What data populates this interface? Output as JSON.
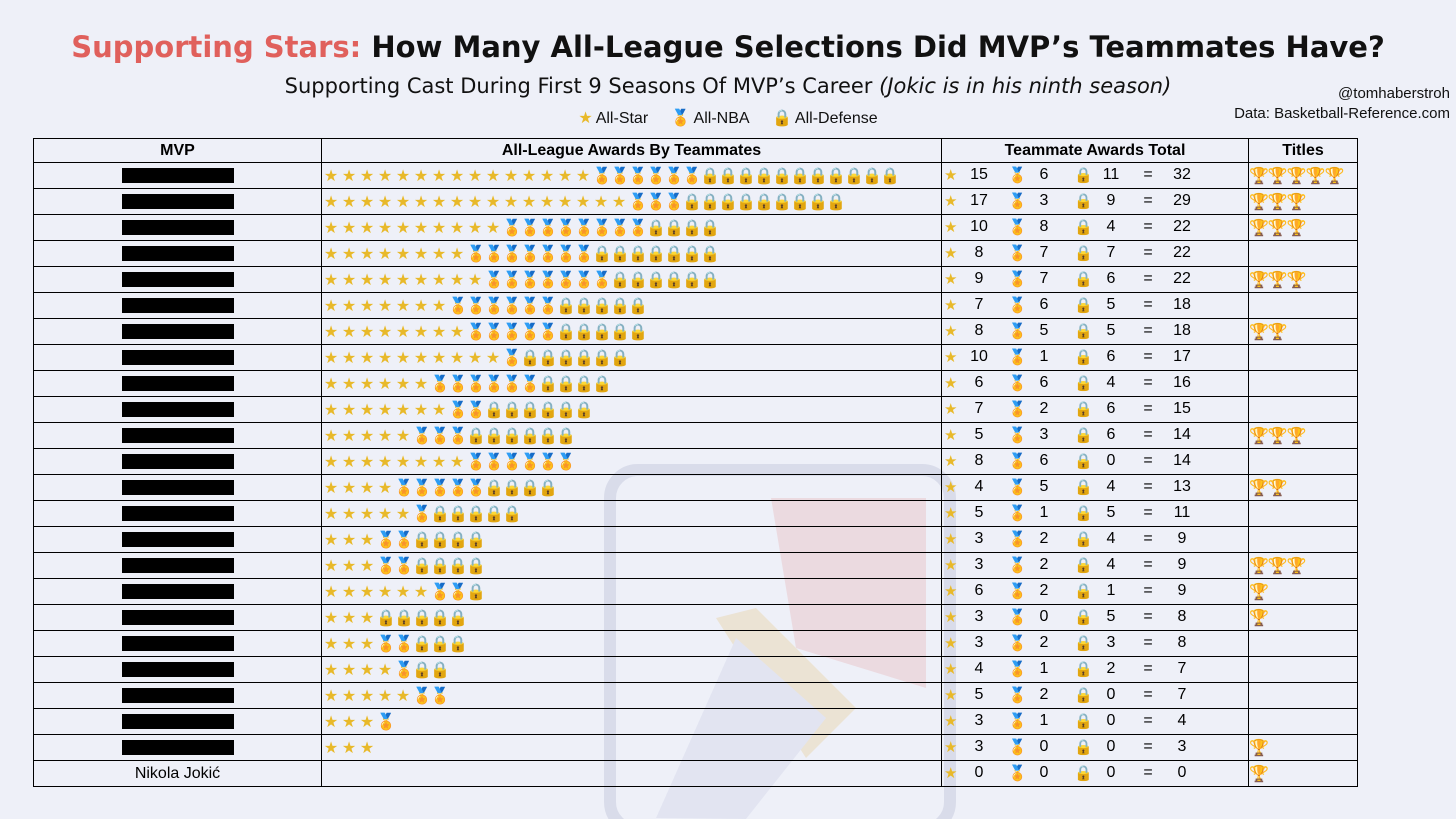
{
  "header": {
    "title_highlight": "Supporting Stars:",
    "title_rest": "How Many All-League Selections Did MVP’s Teammates Have?",
    "subtitle_main": "Supporting Cast During First 9 Seasons Of MVP’s Career",
    "subtitle_note": "(Jokic is in his ninth season)",
    "credit_handle": "@tomhaberstroh",
    "credit_source": "Data: Basketball-Reference.com"
  },
  "legend": [
    {
      "icon": "star-icon",
      "label": "All-Star"
    },
    {
      "icon": "medal-icon",
      "label": "All-NBA"
    },
    {
      "icon": "lock-icon",
      "label": "All-Defense"
    }
  ],
  "glyphs": {
    "star": "★",
    "medal": "🏅",
    "lock": "🔒",
    "trophy": "🏆",
    "eq": "="
  },
  "colors": {
    "title_accent": "#e0605c",
    "background": "#eef0f8",
    "star": "#e8b92a",
    "medal": "#c89a22",
    "lock": "#8a8370",
    "trophy": "#b8860b"
  },
  "table": {
    "columns": [
      "MVP",
      "All-League Awards By Teammates",
      "Teammate Awards Total",
      "Titles"
    ]
  },
  "chart_data": {
    "type": "table",
    "rows": [
      {
        "mvp": "",
        "all_star": 15,
        "all_nba": 6,
        "all_defense": 11,
        "total": 32,
        "titles": 5
      },
      {
        "mvp": "",
        "all_star": 17,
        "all_nba": 3,
        "all_defense": 9,
        "total": 29,
        "titles": 3
      },
      {
        "mvp": "",
        "all_star": 10,
        "all_nba": 8,
        "all_defense": 4,
        "total": 22,
        "titles": 3
      },
      {
        "mvp": "",
        "all_star": 8,
        "all_nba": 7,
        "all_defense": 7,
        "total": 22,
        "titles": 0
      },
      {
        "mvp": "",
        "all_star": 9,
        "all_nba": 7,
        "all_defense": 6,
        "total": 22,
        "titles": 3
      },
      {
        "mvp": "",
        "all_star": 7,
        "all_nba": 6,
        "all_defense": 5,
        "total": 18,
        "titles": 0
      },
      {
        "mvp": "",
        "all_star": 8,
        "all_nba": 5,
        "all_defense": 5,
        "total": 18,
        "titles": 2
      },
      {
        "mvp": "",
        "all_star": 10,
        "all_nba": 1,
        "all_defense": 6,
        "total": 17,
        "titles": 0
      },
      {
        "mvp": "",
        "all_star": 6,
        "all_nba": 6,
        "all_defense": 4,
        "total": 16,
        "titles": 0
      },
      {
        "mvp": "",
        "all_star": 7,
        "all_nba": 2,
        "all_defense": 6,
        "total": 15,
        "titles": 0
      },
      {
        "mvp": "",
        "all_star": 5,
        "all_nba": 3,
        "all_defense": 6,
        "total": 14,
        "titles": 3
      },
      {
        "mvp": "",
        "all_star": 8,
        "all_nba": 6,
        "all_defense": 0,
        "total": 14,
        "titles": 0
      },
      {
        "mvp": "",
        "all_star": 4,
        "all_nba": 5,
        "all_defense": 4,
        "total": 13,
        "titles": 2
      },
      {
        "mvp": "",
        "all_star": 5,
        "all_nba": 1,
        "all_defense": 5,
        "total": 11,
        "titles": 0
      },
      {
        "mvp": "",
        "all_star": 3,
        "all_nba": 2,
        "all_defense": 4,
        "total": 9,
        "titles": 0
      },
      {
        "mvp": "",
        "all_star": 3,
        "all_nba": 2,
        "all_defense": 4,
        "total": 9,
        "titles": 3
      },
      {
        "mvp": "",
        "all_star": 6,
        "all_nba": 2,
        "all_defense": 1,
        "total": 9,
        "titles": 1
      },
      {
        "mvp": "",
        "all_star": 3,
        "all_nba": 0,
        "all_defense": 5,
        "total": 8,
        "titles": 1
      },
      {
        "mvp": "",
        "all_star": 3,
        "all_nba": 2,
        "all_defense": 3,
        "total": 8,
        "titles": 0
      },
      {
        "mvp": "",
        "all_star": 4,
        "all_nba": 1,
        "all_defense": 2,
        "total": 7,
        "titles": 0
      },
      {
        "mvp": "",
        "all_star": 5,
        "all_nba": 2,
        "all_defense": 0,
        "total": 7,
        "titles": 0
      },
      {
        "mvp": "",
        "all_star": 3,
        "all_nba": 1,
        "all_defense": 0,
        "total": 4,
        "titles": 0
      },
      {
        "mvp": "",
        "all_star": 3,
        "all_nba": 0,
        "all_defense": 0,
        "total": 3,
        "titles": 1
      },
      {
        "mvp": "Nikola Jokić",
        "all_star": 0,
        "all_nba": 0,
        "all_defense": 0,
        "total": 0,
        "titles": 1
      }
    ]
  }
}
